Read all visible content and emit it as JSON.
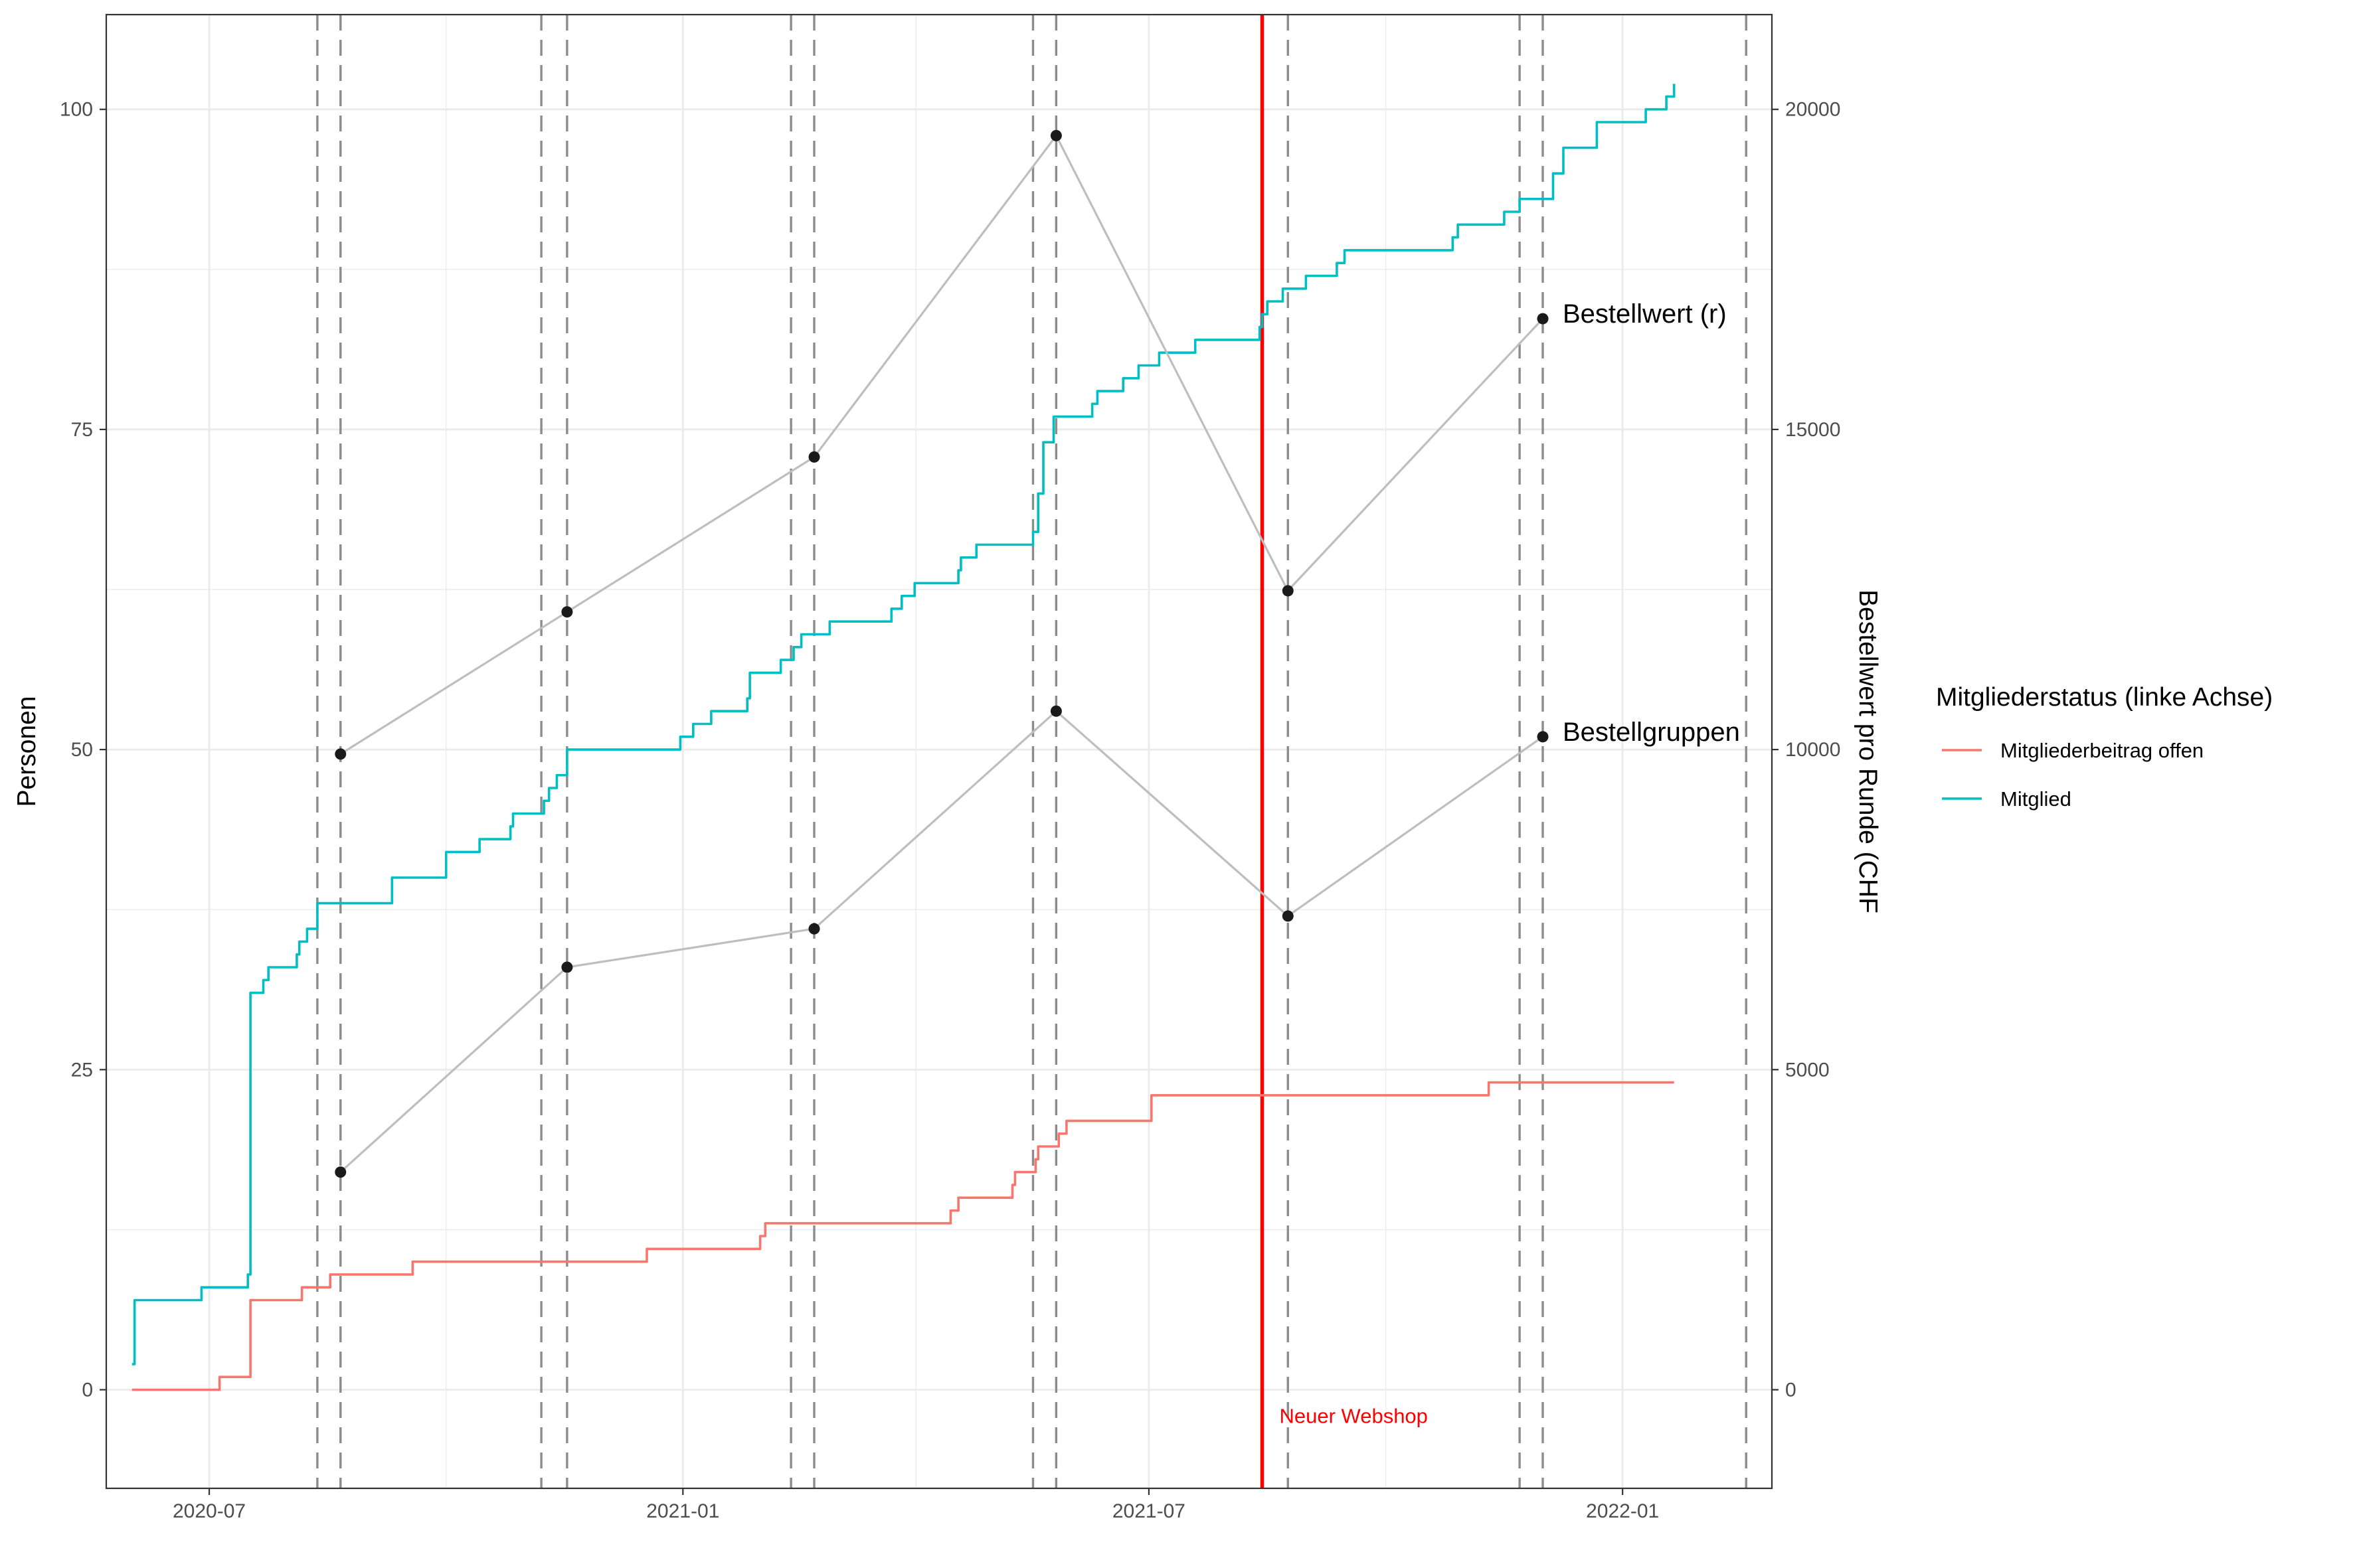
{
  "chart_data": {
    "type": "line",
    "y_left_label": "Personen",
    "y_right_label": "Bestellwert pro Runde (CHF",
    "y_left_range": [
      -7.7,
      107.4
    ],
    "y_right_range": [
      -1540,
      21480
    ],
    "y_left_ticks": [
      0,
      25,
      50,
      75,
      100
    ],
    "y_right_ticks": [
      0,
      5000,
      10000,
      15000,
      20000
    ],
    "x_range": [
      "2020-05-22",
      "2022-02-28"
    ],
    "x_ticks": [
      {
        "date": "2020-07-01",
        "label": "2020-07"
      },
      {
        "date": "2021-01-01",
        "label": "2021-01"
      },
      {
        "date": "2021-07-01",
        "label": "2021-07"
      },
      {
        "date": "2022-01-01",
        "label": "2022-01"
      }
    ],
    "grid": true,
    "legend": {
      "title": "Mitgliederstatus (linke Achse)",
      "position": "right",
      "entries": [
        {
          "label": "Mitgliederbeitrag offen",
          "color": "#F8766D"
        },
        {
          "label": "Mitglied",
          "color": "#00BFC4"
        }
      ]
    },
    "series": [
      {
        "name": "Mitglied",
        "axis": "left",
        "color": "#00BFC4",
        "step": true,
        "points": [
          [
            "2020-06-01",
            2
          ],
          [
            "2020-06-02",
            7
          ],
          [
            "2020-06-10",
            7
          ],
          [
            "2020-06-28",
            8
          ],
          [
            "2020-07-05",
            8
          ],
          [
            "2020-07-16",
            9
          ],
          [
            "2020-07-17",
            10
          ],
          [
            "2020-07-17",
            31
          ],
          [
            "2020-07-22",
            32
          ],
          [
            "2020-07-24",
            33
          ],
          [
            "2020-08-04",
            34
          ],
          [
            "2020-08-05",
            35
          ],
          [
            "2020-08-08",
            36
          ],
          [
            "2020-08-12",
            38
          ],
          [
            "2020-08-19",
            38
          ],
          [
            "2020-09-10",
            40
          ],
          [
            "2020-10-01",
            42
          ],
          [
            "2020-10-14",
            43
          ],
          [
            "2020-10-26",
            44
          ],
          [
            "2020-10-27",
            45
          ],
          [
            "2020-11-08",
            46
          ],
          [
            "2020-11-10",
            47
          ],
          [
            "2020-11-13",
            48
          ],
          [
            "2020-11-17",
            50
          ],
          [
            "2020-12-05",
            50
          ],
          [
            "2020-12-20",
            50
          ],
          [
            "2020-12-31",
            51
          ],
          [
            "2021-01-05",
            52
          ],
          [
            "2021-01-12",
            53
          ],
          [
            "2021-01-26",
            54
          ],
          [
            "2021-01-27",
            56
          ],
          [
            "2021-01-30",
            56
          ],
          [
            "2021-02-08",
            57
          ],
          [
            "2021-02-13",
            58
          ],
          [
            "2021-02-16",
            59
          ],
          [
            "2021-02-27",
            60
          ],
          [
            "2021-03-23",
            61
          ],
          [
            "2021-03-27",
            62
          ],
          [
            "2021-04-01",
            63
          ],
          [
            "2021-04-15",
            63
          ],
          [
            "2021-04-18",
            64
          ],
          [
            "2021-04-19",
            65
          ],
          [
            "2021-04-25",
            66
          ],
          [
            "2021-05-10",
            66
          ],
          [
            "2021-05-17",
            67
          ],
          [
            "2021-05-19",
            70
          ],
          [
            "2021-05-21",
            74
          ],
          [
            "2021-05-25",
            76
          ],
          [
            "2021-05-31",
            76
          ],
          [
            "2021-06-09",
            77
          ],
          [
            "2021-06-11",
            78
          ],
          [
            "2021-06-21",
            79
          ],
          [
            "2021-06-27",
            80
          ],
          [
            "2021-07-02",
            80
          ],
          [
            "2021-07-05",
            81
          ],
          [
            "2021-07-13",
            81
          ],
          [
            "2021-07-19",
            82
          ],
          [
            "2021-07-31",
            82
          ],
          [
            "2021-08-13",
            83
          ],
          [
            "2021-08-14",
            84
          ],
          [
            "2021-08-16",
            85
          ],
          [
            "2021-08-22",
            86
          ],
          [
            "2021-08-31",
            87
          ],
          [
            "2021-09-10",
            87
          ],
          [
            "2021-09-12",
            88
          ],
          [
            "2021-09-15",
            89
          ],
          [
            "2021-09-22",
            89
          ],
          [
            "2021-10-27",
            90
          ],
          [
            "2021-10-29",
            91
          ],
          [
            "2021-11-01",
            91
          ],
          [
            "2021-11-08",
            91
          ],
          [
            "2021-11-16",
            92
          ],
          [
            "2021-11-22",
            93
          ],
          [
            "2021-12-05",
            95
          ],
          [
            "2021-12-09",
            97
          ],
          [
            "2021-12-22",
            99
          ],
          [
            "2022-01-01",
            99
          ],
          [
            "2022-01-10",
            100
          ],
          [
            "2022-01-18",
            101
          ],
          [
            "2022-01-21",
            102
          ]
        ]
      },
      {
        "name": "Mitgliederbeitrag offen",
        "axis": "left",
        "color": "#F8766D",
        "step": true,
        "points": [
          [
            "2020-06-01",
            0
          ],
          [
            "2020-06-28",
            0
          ],
          [
            "2020-07-05",
            1
          ],
          [
            "2020-07-17",
            1
          ],
          [
            "2020-07-17",
            7
          ],
          [
            "2020-08-05",
            7
          ],
          [
            "2020-08-06",
            8
          ],
          [
            "2020-08-13",
            8
          ],
          [
            "2020-08-17",
            9
          ],
          [
            "2020-09-17",
            9
          ],
          [
            "2020-09-18",
            10
          ],
          [
            "2020-12-05",
            10
          ],
          [
            "2020-12-18",
            11
          ],
          [
            "2021-01-30",
            11
          ],
          [
            "2021-01-31",
            12
          ],
          [
            "2021-02-02",
            13
          ],
          [
            "2021-03-30",
            13
          ],
          [
            "2021-04-15",
            14
          ],
          [
            "2021-04-18",
            15
          ],
          [
            "2021-04-26",
            15
          ],
          [
            "2021-05-09",
            16
          ],
          [
            "2021-05-10",
            17
          ],
          [
            "2021-05-17",
            17
          ],
          [
            "2021-05-18",
            18
          ],
          [
            "2021-05-19",
            19
          ],
          [
            "2021-05-26",
            19
          ],
          [
            "2021-05-27",
            20
          ],
          [
            "2021-05-30",
            21
          ],
          [
            "2021-06-26",
            21
          ],
          [
            "2021-07-02",
            23
          ],
          [
            "2021-11-05",
            23
          ],
          [
            "2021-11-10",
            24
          ],
          [
            "2022-01-21",
            24
          ]
        ]
      },
      {
        "name": "Bestellwert (r)",
        "axis": "right",
        "color": "#bebebe",
        "markers": true,
        "points": [
          [
            "2020-08-21",
            9930
          ],
          [
            "2020-11-17",
            12150
          ],
          [
            "2021-02-21",
            14570
          ],
          [
            "2021-05-26",
            19590
          ],
          [
            "2021-08-24",
            12480
          ],
          [
            "2021-12-01",
            16730
          ]
        ]
      },
      {
        "name": "Bestellgruppen",
        "axis": "right",
        "color": "#bebebe",
        "markers": true,
        "points": [
          [
            "2020-08-21",
            3400
          ],
          [
            "2020-11-17",
            6600
          ],
          [
            "2021-02-21",
            7200
          ],
          [
            "2021-05-26",
            10600
          ],
          [
            "2021-08-24",
            7400
          ],
          [
            "2021-12-01",
            10200
          ]
        ]
      }
    ],
    "vlines_dashed": [
      "2020-08-12",
      "2020-08-21",
      "2020-11-07",
      "2020-11-17",
      "2021-02-12",
      "2021-02-21",
      "2021-05-17",
      "2021-05-26",
      "2021-08-24",
      "2021-11-22",
      "2021-12-01",
      "2022-02-18"
    ],
    "vline_event": {
      "date": "2021-08-14",
      "label": "Neuer Webshop",
      "color": "#FF0000"
    }
  }
}
